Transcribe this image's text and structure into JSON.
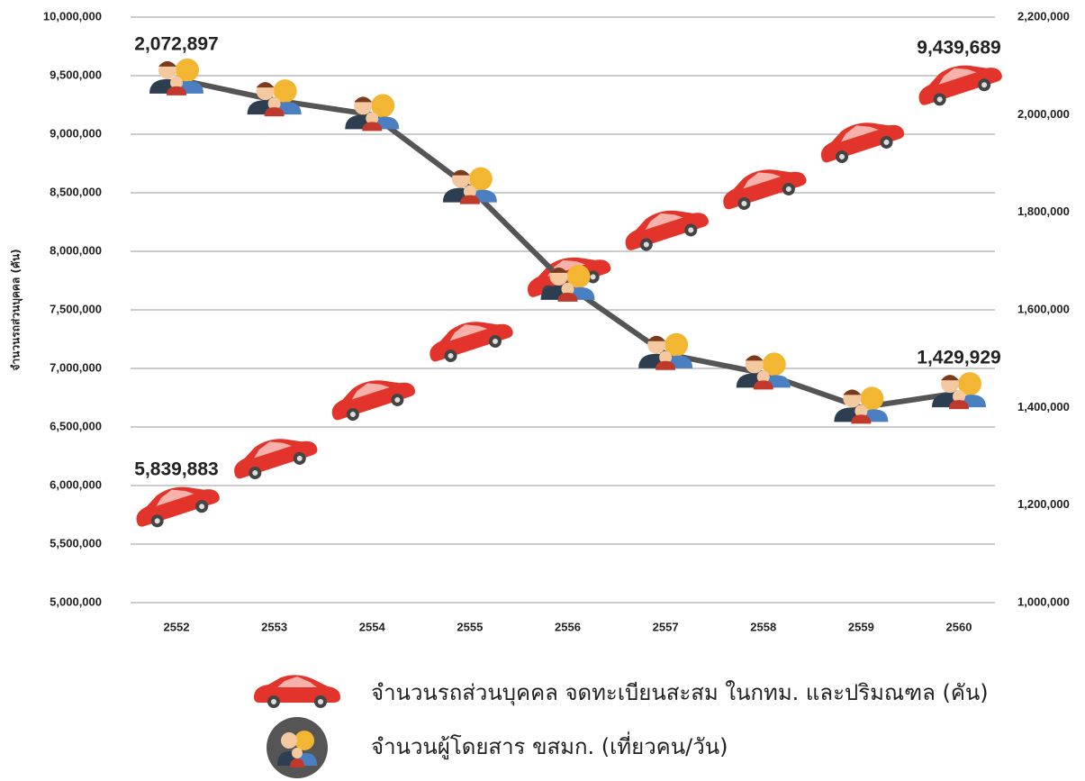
{
  "chart_data": {
    "type": "line",
    "y_label": "จำนวนรถส่วนบุคคล (คัน)",
    "categories": [
      "2552",
      "2553",
      "2554",
      "2555",
      "2556",
      "2557",
      "2558",
      "2559",
      "2560"
    ],
    "series": [
      {
        "name": "จำนวนรถส่วนบุคคล จดทะเบียนสะสม ในกทม. และปริมณฑล (คัน)",
        "color": "#e3342b",
        "marker": "car",
        "values": [
          5839883,
          6250000,
          6750000,
          7250000,
          7800000,
          8200000,
          8550000,
          8950000,
          9439689
        ],
        "value_labels": [
          "5,839,883",
          null,
          null,
          null,
          null,
          null,
          null,
          null,
          "9,439,689"
        ]
      },
      {
        "name": "จำนวนผู้โดยสาร ขสมก. (เที่ยวคน/วัน)",
        "color": "#555555",
        "marker": "people",
        "axis": "y2",
        "values": [
          2072897,
          2030000,
          2000000,
          1850000,
          1650000,
          1510000,
          1470000,
          1400000,
          1429929
        ],
        "value_labels": [
          "2,072,897",
          null,
          null,
          null,
          null,
          null,
          null,
          null,
          "1,429,929"
        ]
      }
    ],
    "ylim": [
      5000000,
      10000000
    ],
    "yticks": [
      {
        "value": 5000000,
        "label": "5,000,000"
      },
      {
        "value": 5500000,
        "label": "5,500,000"
      },
      {
        "value": 6000000,
        "label": "6,000,000"
      },
      {
        "value": 6500000,
        "label": "6,500,000"
      },
      {
        "value": 7000000,
        "label": "7,000,000"
      },
      {
        "value": 7500000,
        "label": "7,500,000"
      },
      {
        "value": 8000000,
        "label": "8,000,000"
      },
      {
        "value": 8500000,
        "label": "8,500,000"
      },
      {
        "value": 9000000,
        "label": "9,000,000"
      },
      {
        "value": 9500000,
        "label": "9,500,000"
      },
      {
        "value": 10000000,
        "label": "10,000,000"
      }
    ],
    "y2lim": [
      1000000,
      2200000
    ],
    "y2ticks": [
      {
        "value": 1000000,
        "label": "1,000,000"
      },
      {
        "value": 1200000,
        "label": "1,200,000"
      },
      {
        "value": 1400000,
        "label": "1,400,000"
      },
      {
        "value": 1600000,
        "label": "1,600,000"
      },
      {
        "value": 1800000,
        "label": "1,800,000"
      },
      {
        "value": 2000000,
        "label": "2,000,000"
      },
      {
        "value": 2200000,
        "label": "2,200,000"
      }
    ],
    "grid": true
  }
}
